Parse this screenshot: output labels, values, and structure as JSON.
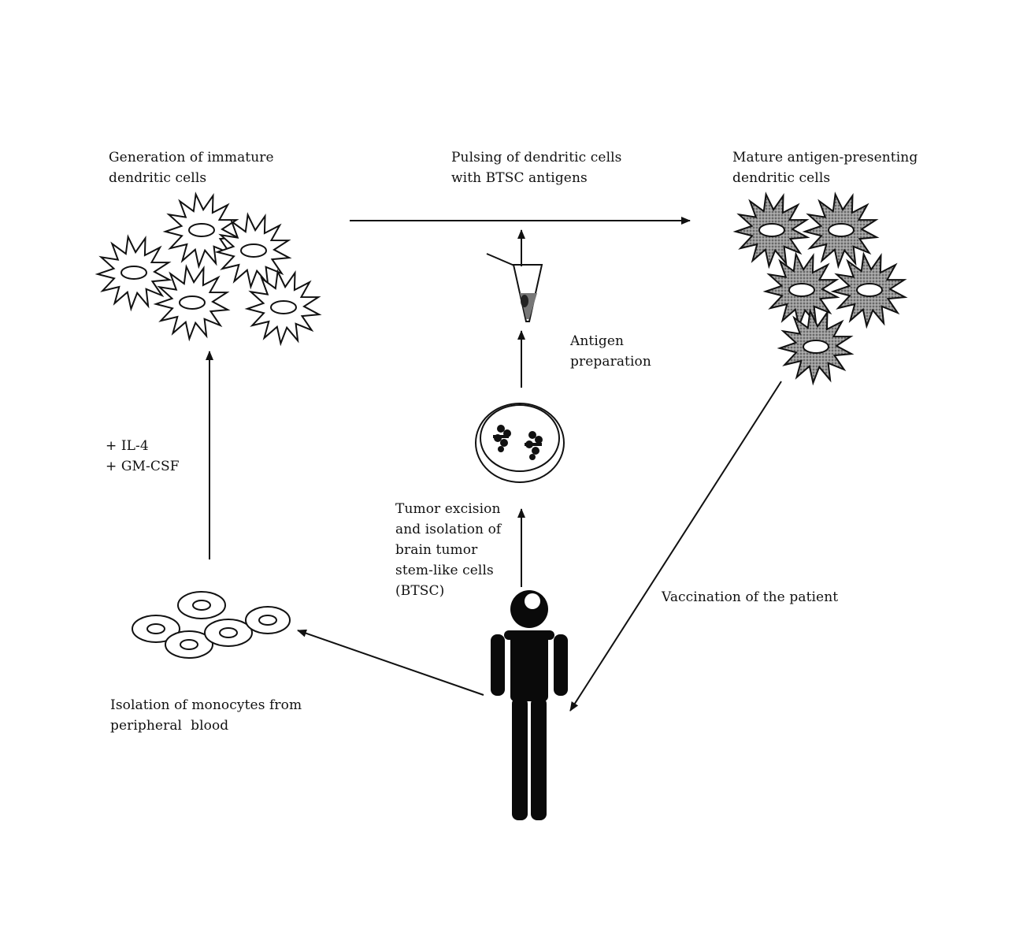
{
  "labels": {
    "generation": "Generation of immature\ndendritic cells",
    "pulsing": "Pulsing of dendritic cells\nwith BTSC antigens",
    "mature": "Mature antigen-presenting\ndendritic cells",
    "antigen_prep": "Antigen\npreparation",
    "cytokines": "+ IL-4\n+ GM-CSF",
    "tumor": "Tumor excision\nand isolation of\nbrain tumor\nstem-like cells\n(BTSC)",
    "vaccination": "Vaccination of the patient",
    "monocytes": "Isolation of monocytes from\nperipheral  blood"
  },
  "colors": {
    "stroke": "#111111",
    "mature_fill": "#8a8a8a",
    "immature_fill": "#ffffff",
    "patient": "#0a0a0a"
  },
  "icons": {
    "immature_cell": "spiky-cell-icon",
    "mature_cell": "shaded-spiky-cell-icon",
    "monocyte": "oval-cell-icon",
    "tube": "test-tube-icon",
    "dish": "petri-dish-icon",
    "patient": "person-icon"
  }
}
